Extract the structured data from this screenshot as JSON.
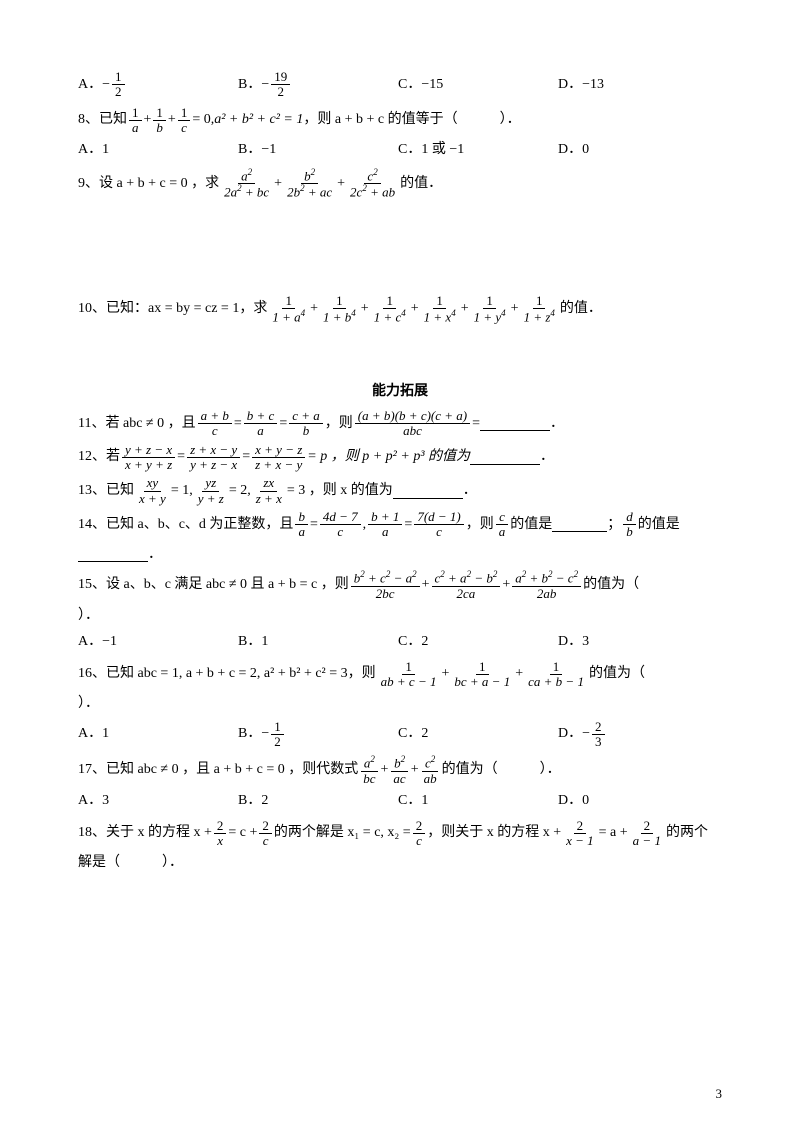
{
  "page_number": "3",
  "section_title": "能力拓展",
  "q7_opts": {
    "A": {
      "prefix": "A．",
      "lead": "−",
      "num": "1",
      "den": "2"
    },
    "B": {
      "prefix": "B．",
      "lead": "−",
      "num": "19",
      "den": "2"
    },
    "C": {
      "prefix": "C．",
      "text": "−15"
    },
    "D": {
      "prefix": "D．",
      "text": "−13"
    }
  },
  "q8": {
    "label": "8、已知",
    "after_frac": " = 0,",
    "cond2": "a² + b² + c² = 1",
    "tail": "，则 a + b + c 的值等于（　　　）．",
    "optA": "A．1",
    "optB": "B．−1",
    "optC": "C．1 或 −1",
    "optD": "D．0"
  },
  "q9": {
    "label": "9、设 a + b + c = 0 ，求",
    "tail": "的值．"
  },
  "q10": {
    "label": "10、已知：ax = by = cz = 1，求",
    "tail": "的值．"
  },
  "q11": {
    "label": "11、若 abc ≠ 0 ，且",
    "mid": "，则",
    "eq": " = ",
    "end": "．"
  },
  "q12": {
    "label": "12、若",
    "mid": " = p ，则 p + p² + p³ 的值为",
    "end": "．"
  },
  "q13": {
    "label": "13、已知",
    "mid1": " = 1,",
    "mid2": " = 2,",
    "mid3": " = 3 ，则 x 的值为",
    "end": "．"
  },
  "q14": {
    "label": "14、已知 a、b、c、d 为正整数，且",
    "mid1": " ，则",
    "mid2": "的值是",
    "mid3": "；",
    "mid4": "的值是",
    "end": "．"
  },
  "q15": {
    "label": "15、设 a、b、c 满足 abc ≠ 0 且 a + b = c ，则",
    "tail": "的值为（",
    "close": "）．",
    "optA": "A．−1",
    "optB": "B．1",
    "optC": "C．2",
    "optD": "D．3"
  },
  "q16": {
    "label": "16、已知 abc = 1, a + b + c = 2, a² + b² + c² = 3，则",
    "tail": "的值为（",
    "close": "）．",
    "optA": "A．1",
    "optB": {
      "prefix": "B．",
      "lead": "−",
      "num": "1",
      "den": "2"
    },
    "optC": "C．2",
    "optD": {
      "prefix": "D．",
      "lead": "−",
      "num": "2",
      "den": "3"
    }
  },
  "q17": {
    "label": "17、已知 abc ≠ 0 ，且 a + b + c = 0 ，则代数式",
    "tail": "的值为（　　　）．",
    "optA": "A．3",
    "optB": "B．2",
    "optC": "C．1",
    "optD": "D．0"
  },
  "q18": {
    "label": "18、关于 x 的方程 x +",
    "mid1": " = c +",
    "mid2": " 的两个解是 x₁ = c, x₂ =",
    "mid3": " ，则关于 x 的方程 x +",
    "mid4": " = a +",
    "mid5": " 的两个",
    "line2": "解是（　　　）．"
  }
}
